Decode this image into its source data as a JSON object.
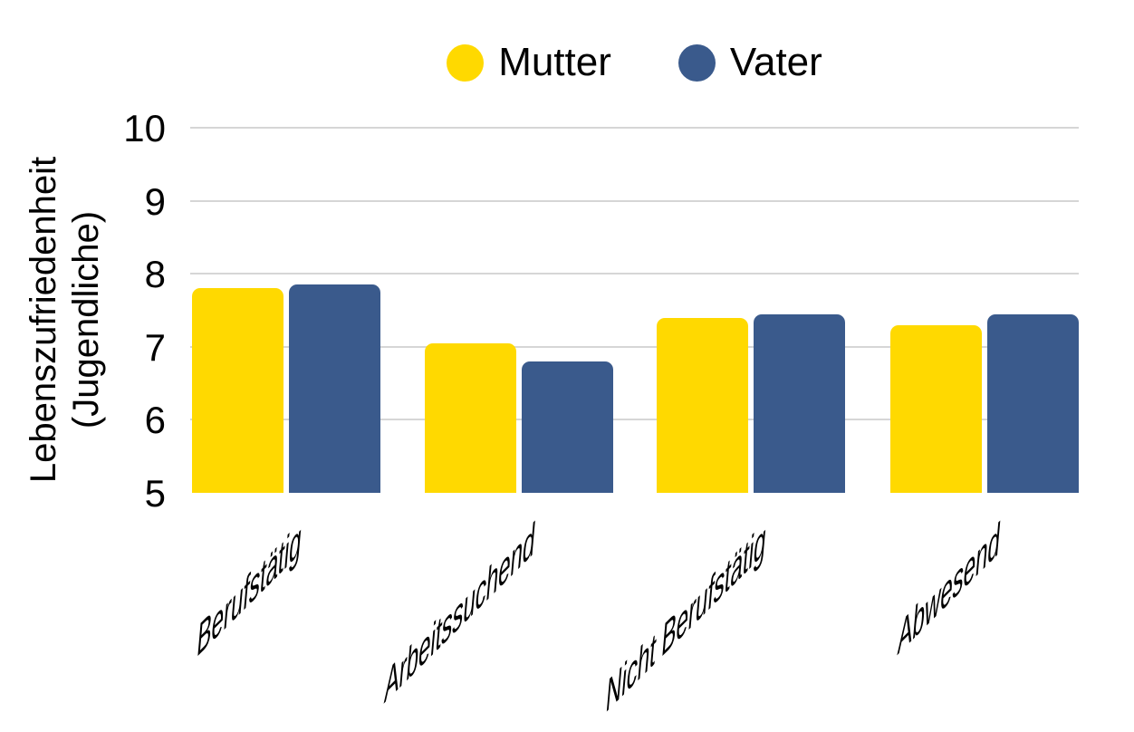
{
  "chart_data": {
    "type": "bar",
    "categories": [
      "Berufstätig",
      "Arbeitssuchend",
      "Nicht Berufstätig",
      "Abwesend"
    ],
    "series": [
      {
        "name": "Mutter",
        "color": "#ffd900",
        "values": [
          7.8,
          7.05,
          7.4,
          7.3
        ]
      },
      {
        "name": "Vater",
        "color": "#3a5a8c",
        "values": [
          7.85,
          6.8,
          7.45,
          7.45
        ]
      }
    ],
    "title": "",
    "xlabel": "",
    "ylabel": "Lebenszufriedenheit\n(Jugendliche)",
    "ylim": [
      5,
      10
    ],
    "yticks": [
      5,
      6,
      7,
      8,
      9,
      10
    ],
    "grid": "horizontal",
    "gridline_color": "#d6d6d6",
    "legend_position": "top",
    "background_color": "#ffffff",
    "text_color": "#000000"
  }
}
